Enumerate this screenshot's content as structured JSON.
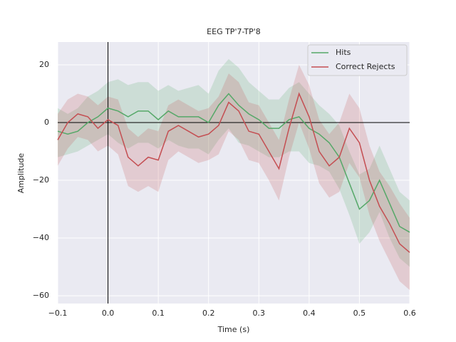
{
  "chart_data": {
    "type": "line",
    "title": "EEG TP'7-TP'8",
    "xlabel": "Time (s)",
    "ylabel": "Amplitude",
    "x": [
      -0.1,
      -0.08,
      -0.06,
      -0.04,
      -0.02,
      0,
      0.02,
      0.04,
      0.06,
      0.08,
      0.1,
      0.12,
      0.14,
      0.16,
      0.18,
      0.2,
      0.22,
      0.24,
      0.26,
      0.28,
      0.3,
      0.32,
      0.34,
      0.36,
      0.38,
      0.4,
      0.42,
      0.44,
      0.46,
      0.48,
      0.5,
      0.52,
      0.54,
      0.56,
      0.58,
      0.6
    ],
    "series": [
      {
        "name": "Hits",
        "color": "#55a868",
        "values": [
          -3,
          -4,
          -3,
          0,
          2,
          5,
          4,
          2,
          4,
          4,
          1,
          4,
          2,
          2,
          2,
          0,
          6,
          10,
          6,
          3,
          1,
          -2,
          -2,
          1,
          2,
          -2,
          -4,
          -7,
          -12,
          -21,
          -30,
          -27,
          -20,
          -28,
          -36,
          -38
        ],
        "upper": [
          5,
          3,
          5,
          9,
          11,
          14,
          15,
          13,
          14,
          14,
          11,
          13,
          11,
          12,
          13,
          10,
          18,
          22,
          19,
          14,
          11,
          8,
          8,
          12,
          14,
          10,
          6,
          3,
          -1,
          -10,
          -18,
          -16,
          -8,
          -16,
          -24,
          -27
        ],
        "lower": [
          -12,
          -11,
          -10,
          -8,
          -6,
          -4,
          -7,
          -9,
          -7,
          -7,
          -9,
          -6,
          -8,
          -9,
          -9,
          -11,
          -6,
          -2,
          -7,
          -8,
          -10,
          -12,
          -12,
          -10,
          -10,
          -14,
          -15,
          -17,
          -23,
          -32,
          -42,
          -38,
          -31,
          -40,
          -47,
          -50
        ]
      },
      {
        "name": "Correct Rejects",
        "color": "#c44e52",
        "values": [
          -6,
          0,
          3,
          2,
          -2,
          1,
          -1,
          -12,
          -15,
          -12,
          -13,
          -3,
          -1,
          -3,
          -5,
          -4,
          -1,
          7,
          4,
          -3,
          -4,
          -10,
          -16,
          -2,
          10,
          2,
          -10,
          -15,
          -12,
          -2,
          -7,
          -20,
          -29,
          -35,
          -42,
          -45
        ],
        "upper": [
          3,
          8,
          10,
          9,
          6,
          9,
          8,
          -2,
          -5,
          -2,
          -3,
          6,
          8,
          6,
          4,
          5,
          9,
          17,
          14,
          7,
          6,
          0,
          -6,
          8,
          20,
          13,
          1,
          -4,
          0,
          10,
          5,
          -8,
          -17,
          -22,
          -28,
          -33
        ],
        "lower": [
          -15,
          -9,
          -5,
          -6,
          -10,
          -8,
          -11,
          -22,
          -24,
          -22,
          -24,
          -13,
          -10,
          -12,
          -14,
          -13,
          -11,
          -3,
          -6,
          -13,
          -14,
          -20,
          -27,
          -12,
          0,
          -9,
          -21,
          -26,
          -24,
          -14,
          -19,
          -32,
          -41,
          -48,
          -55,
          -58
        ]
      }
    ],
    "xlim": [
      -0.1,
      0.6
    ],
    "xticks": [
      {
        "value": -0.1,
        "label": "−0.1"
      },
      {
        "value": 0,
        "label": "0.0"
      },
      0.1,
      0.2,
      0.3,
      0.4,
      0.5,
      0.6
    ],
    "ylim": [
      -62.7,
      27.9
    ],
    "yticks": [
      {
        "value": -60,
        "label": "−60"
      },
      {
        "value": -40,
        "label": "−40"
      },
      {
        "value": -20,
        "label": "−20"
      },
      0,
      20
    ],
    "grid": true,
    "hline": 0,
    "vline": 0,
    "legend": "upper right"
  }
}
